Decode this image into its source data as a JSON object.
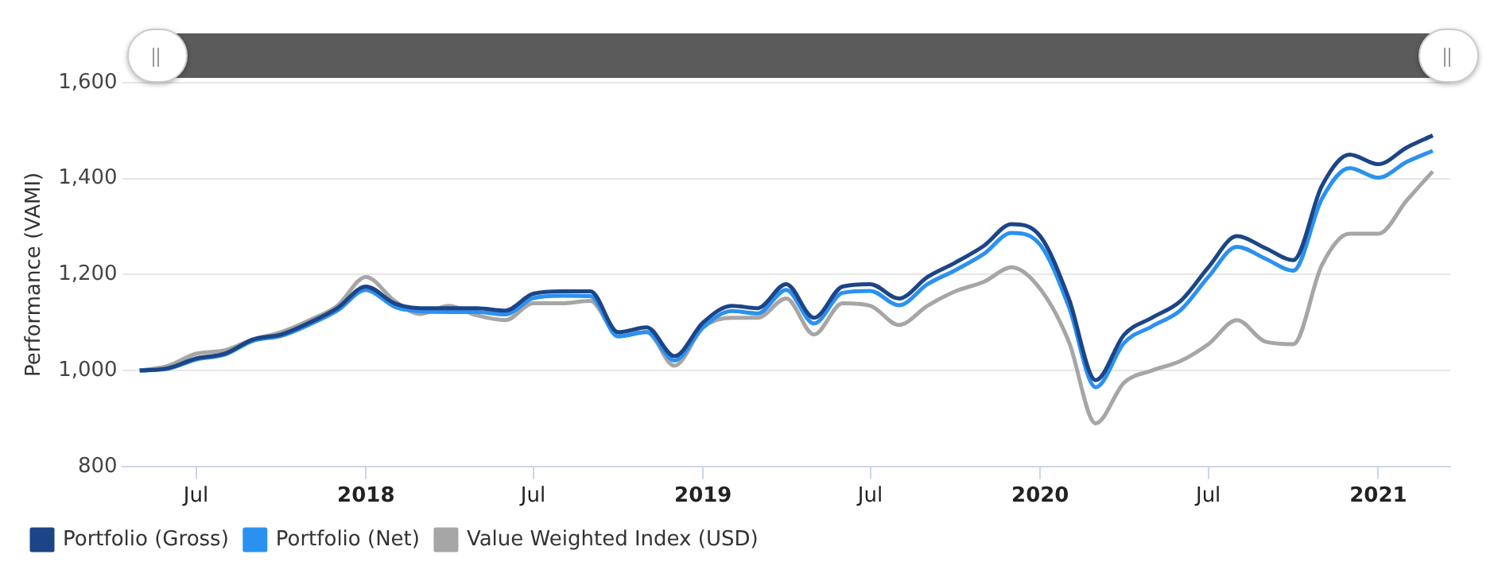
{
  "chart_data": {
    "type": "line",
    "ylabel": "Performance (VAMI)",
    "x": [
      "2017-05",
      "2017-06",
      "2017-07",
      "2017-08",
      "2017-09",
      "2017-10",
      "2017-11",
      "2017-12",
      "2018-01",
      "2018-02",
      "2018-03",
      "2018-04",
      "2018-05",
      "2018-06",
      "2018-07",
      "2018-08",
      "2018-09",
      "2018-10",
      "2018-11",
      "2018-12",
      "2019-01",
      "2019-02",
      "2019-03",
      "2019-04",
      "2019-05",
      "2019-06",
      "2019-07",
      "2019-08",
      "2019-09",
      "2019-10",
      "2019-11",
      "2019-12",
      "2020-01",
      "2020-02",
      "2020-03",
      "2020-04",
      "2020-05",
      "2020-06",
      "2020-07",
      "2020-08",
      "2020-09",
      "2020-10",
      "2020-11",
      "2020-12",
      "2021-01",
      "2021-02",
      "2021-03"
    ],
    "series": [
      {
        "name": "Portfolio (Gross)",
        "color": "#1c4587",
        "values": [
          1000,
          1005,
          1025,
          1035,
          1065,
          1075,
          1100,
          1130,
          1175,
          1140,
          1130,
          1130,
          1130,
          1125,
          1160,
          1165,
          1165,
          1080,
          1090,
          1030,
          1100,
          1135,
          1130,
          1180,
          1110,
          1175,
          1180,
          1150,
          1195,
          1225,
          1260,
          1305,
          1280,
          1150,
          980,
          1075,
          1110,
          1145,
          1215,
          1280,
          1255,
          1230,
          1385,
          1450,
          1430,
          1465,
          1490
        ]
      },
      {
        "name": "Portfolio (Net)",
        "color": "#2b91f0",
        "values": [
          1000,
          1004,
          1023,
          1033,
          1062,
          1072,
          1096,
          1125,
          1168,
          1133,
          1123,
          1122,
          1122,
          1117,
          1151,
          1156,
          1155,
          1071,
          1080,
          1021,
          1090,
          1124,
          1119,
          1168,
          1098,
          1162,
          1166,
          1136,
          1180,
          1209,
          1243,
          1287,
          1262,
          1133,
          965,
          1058,
          1092,
          1126,
          1195,
          1258,
          1233,
          1208,
          1358,
          1422,
          1402,
          1435,
          1458
        ]
      },
      {
        "name": "Value Weighted Index (USD)",
        "color": "#a6a6a6",
        "values": [
          1000,
          1010,
          1035,
          1042,
          1065,
          1080,
          1105,
          1135,
          1195,
          1145,
          1118,
          1135,
          1115,
          1105,
          1140,
          1140,
          1145,
          1075,
          1080,
          1010,
          1090,
          1110,
          1110,
          1150,
          1075,
          1140,
          1135,
          1095,
          1135,
          1165,
          1185,
          1215,
          1170,
          1060,
          890,
          975,
          1000,
          1020,
          1055,
          1105,
          1060,
          1055,
          1220,
          1285,
          1285,
          1355,
          1415
        ]
      }
    ],
    "xlim": [
      "2017-04-12",
      "2021-03-20"
    ],
    "xticks": [
      {
        "value": "2017-07",
        "label": "Jul"
      },
      {
        "value": "2018",
        "label": "2018"
      },
      {
        "value": "2018-07",
        "label": "Jul"
      },
      {
        "value": "2019",
        "label": "2019"
      },
      {
        "value": "2019-07",
        "label": "Jul"
      },
      {
        "value": "2020",
        "label": "2020"
      },
      {
        "value": "2020-07",
        "label": "Jul"
      },
      {
        "value": "2021",
        "label": "2021"
      }
    ],
    "ylim": [
      800,
      1600
    ],
    "yticks": [
      {
        "value": 800,
        "label": "800"
      },
      {
        "value": 1000,
        "label": "1,000"
      },
      {
        "value": 1200,
        "label": "1,200"
      },
      {
        "value": 1400,
        "label": "1,400"
      },
      {
        "value": 1600,
        "label": "1,600"
      }
    ],
    "grid": "y",
    "legend": "bottom left",
    "marker": "none",
    "line_style": "solid"
  }
}
